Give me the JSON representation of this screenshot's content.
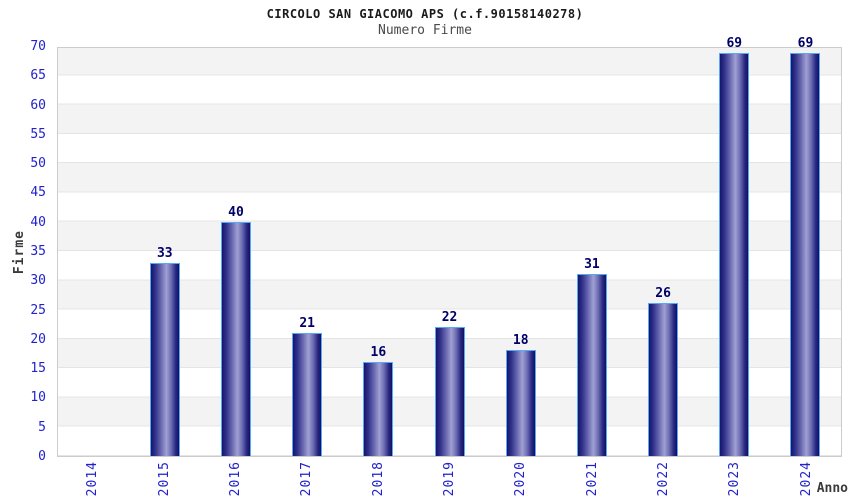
{
  "title": "CIRCOLO SAN GIACOMO APS (c.f.90158140278)",
  "subtitle": "Numero Firme",
  "chart_data": {
    "type": "bar",
    "title": "CIRCOLO SAN GIACOMO APS (c.f.90158140278)",
    "subtitle": "Numero Firme",
    "categories": [
      "2014",
      "2015",
      "2016",
      "2017",
      "2018",
      "2019",
      "2020",
      "2021",
      "2022",
      "2023",
      "2024"
    ],
    "values": [
      0,
      33,
      40,
      21,
      16,
      22,
      18,
      31,
      26,
      69,
      69
    ],
    "xlabel": "Anno",
    "ylabel": "Firme",
    "ylim": [
      0,
      70
    ],
    "ytick_step": 5,
    "legend": "none",
    "grid": "alternating horizontal bands every 5 units",
    "colors": {
      "bar_dark": "#15156a",
      "bar_light": "#a0a0d4",
      "bar_border": "#58a8f8",
      "tick_label": "#2222cc",
      "value_label": "#000066",
      "band": "#f3f3f3",
      "grid_line": "#e4e4e4",
      "plot_border": "#cccccc"
    }
  }
}
